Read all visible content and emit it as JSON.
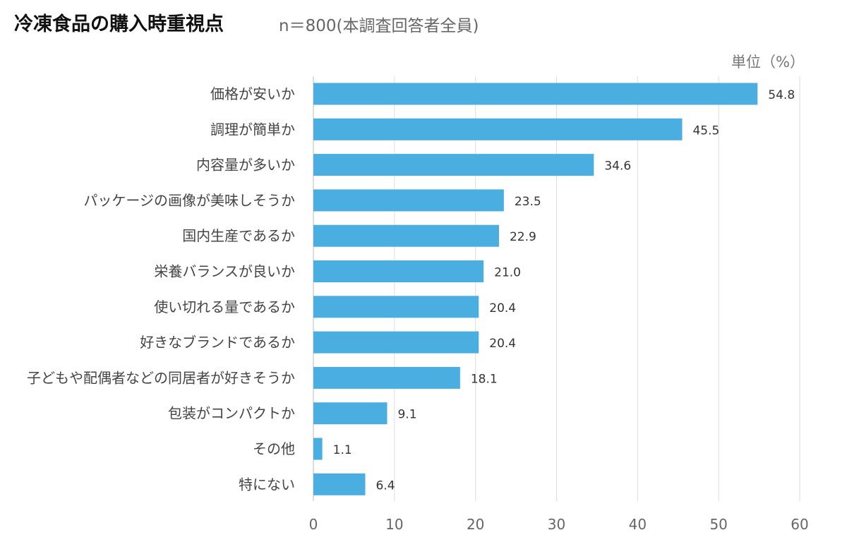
{
  "chart_data": {
    "type": "bar",
    "orientation": "horizontal",
    "title": "冷凍食品の購入時重視点",
    "subtitle": "n＝800(本調査回答者全員)",
    "unit_label": "単位（%）",
    "categories": [
      "価格が安いか",
      "調理が簡単か",
      "内容量が多いか",
      "パッケージの画像が美味しそうか",
      "国内生産であるか",
      "栄養バランスが良いか",
      "使い切れる量であるか",
      "好きなブランドであるか",
      "子どもや配偶者などの同居者が好きそうか",
      "包装がコンパクトか",
      "その他",
      "特にない"
    ],
    "values": [
      54.8,
      45.5,
      34.6,
      23.5,
      22.9,
      21.0,
      20.4,
      20.4,
      18.1,
      9.1,
      1.1,
      6.4
    ],
    "value_labels": [
      "54.8",
      "45.5",
      "34.6",
      "23.5",
      "22.9",
      "21.0",
      "20.4",
      "20.4",
      "18.1",
      "9.1",
      "1.1",
      "6.4"
    ],
    "xlim": [
      0,
      60
    ],
    "xticks": [
      "0",
      "10",
      "20",
      "30",
      "40",
      "50",
      "60"
    ],
    "grid": true,
    "bar_color": "#4aaee0"
  }
}
